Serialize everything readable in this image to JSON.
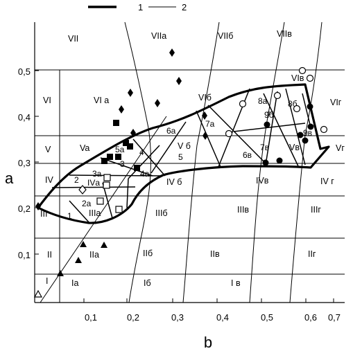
{
  "diagram": {
    "legend": [
      {
        "label": "1",
        "style": "thick"
      },
      {
        "label": "2",
        "style": "thin"
      }
    ],
    "axes": {
      "xlabel": "b",
      "ylabel": "a",
      "x_ticks": [
        "0,1",
        "0,2",
        "0,3",
        "0,4",
        "0,5",
        "0,6",
        "0,7"
      ],
      "y_ticks": [
        "0,1",
        "0,2",
        "0,3",
        "0,4",
        "0,5"
      ]
    },
    "zones": [
      {
        "label": "VII"
      },
      {
        "label": "VIIа"
      },
      {
        "label": "VIIб"
      },
      {
        "label": "VIIв"
      },
      {
        "label": "VI"
      },
      {
        "label": "VI а"
      },
      {
        "label": "VIб"
      },
      {
        "label": "VIв"
      },
      {
        "label": "VIг"
      },
      {
        "label": "V"
      },
      {
        "label": "Va"
      },
      {
        "label": "V б"
      },
      {
        "label": "Vв"
      },
      {
        "label": "Vг"
      },
      {
        "label": "IV"
      },
      {
        "label": "IVа"
      },
      {
        "label": "IV б"
      },
      {
        "label": "IVв"
      },
      {
        "label": "IV г"
      },
      {
        "label": "III"
      },
      {
        "label": "IIIа"
      },
      {
        "label": "IIIб"
      },
      {
        "label": "IIIв"
      },
      {
        "label": "IIIг"
      },
      {
        "label": "II"
      },
      {
        "label": "IIа"
      },
      {
        "label": "IIб"
      },
      {
        "label": "IIв"
      },
      {
        "label": "IIг"
      },
      {
        "label": "I"
      },
      {
        "label": "Iа"
      },
      {
        "label": "Iб"
      },
      {
        "label": "I в"
      }
    ],
    "numbered_regions": [
      {
        "label": "1"
      },
      {
        "label": "2"
      },
      {
        "label": "2а"
      },
      {
        "label": "3"
      },
      {
        "label": "3а"
      },
      {
        "label": "4"
      },
      {
        "label": "4а"
      },
      {
        "label": "5"
      },
      {
        "label": "5а"
      },
      {
        "label": "6а"
      },
      {
        "label": "6в"
      },
      {
        "label": "7"
      },
      {
        "label": "7а"
      },
      {
        "label": "7в"
      },
      {
        "label": "8а"
      },
      {
        "label": "8б"
      },
      {
        "label": "9б"
      },
      {
        "label": "9в"
      }
    ]
  }
}
